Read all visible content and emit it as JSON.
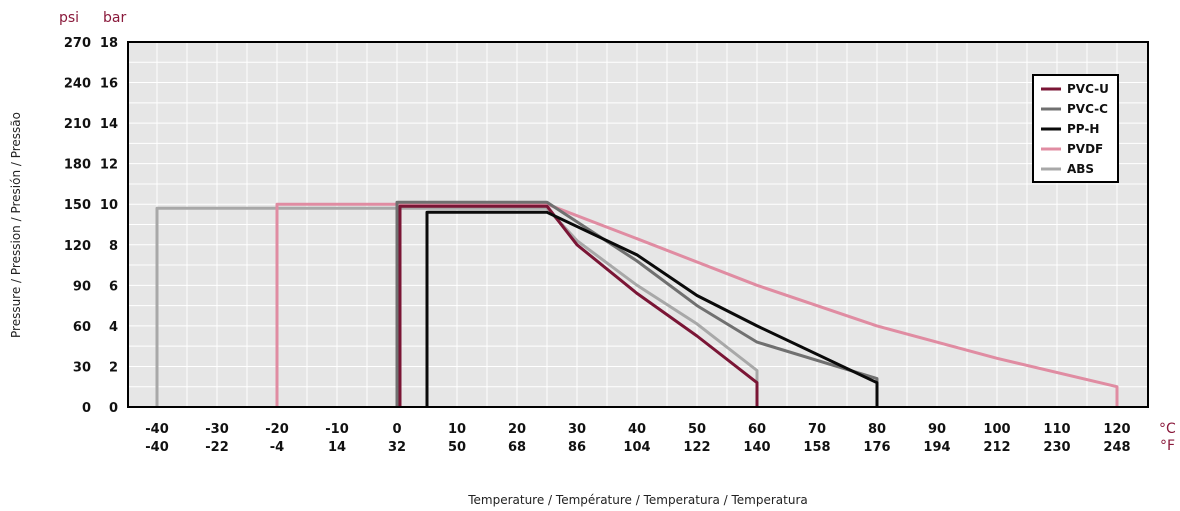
{
  "chart_data": {
    "type": "line",
    "xlabel": "Temperature / Température / Temperatura / Temperatura",
    "ylabel": "Pressure / Pression / Presión / Pressão",
    "x_unit_primary": "°C",
    "x_unit_secondary": "°F",
    "y_unit_primary": "bar",
    "y_unit_secondary": "psi",
    "xlim": [
      -40,
      120
    ],
    "ylim": [
      0,
      18
    ],
    "x_ticks_c": [
      "-40",
      "-30",
      "-20",
      "-10",
      "0",
      "10",
      "20",
      "30",
      "40",
      "50",
      "60",
      "70",
      "80",
      "90",
      "100",
      "110",
      "120"
    ],
    "x_ticks_f": [
      "-40",
      "-22",
      "-4",
      "14",
      "32",
      "50",
      "68",
      "86",
      "104",
      "122",
      "140",
      "158",
      "176",
      "194",
      "212",
      "230",
      "248"
    ],
    "y_ticks_bar": [
      "0",
      "2",
      "4",
      "6",
      "8",
      "10",
      "12",
      "14",
      "16",
      "18"
    ],
    "y_ticks_psi": [
      "0",
      "30",
      "60",
      "90",
      "120",
      "150",
      "180",
      "210",
      "240",
      "270"
    ],
    "grid": true,
    "legend_position": "top-right",
    "colors": {
      "PVC-U": "#7a1535",
      "PVC-C": "#707070",
      "PP-H": "#0a0a0a",
      "PVDF": "#e08ca2",
      "ABS": "#a8a8a8"
    },
    "series": [
      {
        "name": "ABS",
        "x": [
          -40,
          -40,
          25,
          30,
          40,
          50,
          60,
          60
        ],
        "y": [
          0,
          9.8,
          9.8,
          8.2,
          6.0,
          4.1,
          1.8,
          0
        ]
      },
      {
        "name": "PVDF",
        "x": [
          -20,
          -20,
          25,
          40,
          60,
          80,
          100,
          120,
          120
        ],
        "y": [
          0,
          10.0,
          10.0,
          8.3,
          6.0,
          4.0,
          2.4,
          1.0,
          0
        ]
      },
      {
        "name": "PVC-C",
        "x": [
          0,
          0,
          25,
          40,
          50,
          60,
          80,
          80
        ],
        "y": [
          0,
          10.1,
          10.1,
          7.2,
          5.0,
          3.2,
          1.4,
          0
        ]
      },
      {
        "name": "PVC-U",
        "x": [
          0.5,
          0.5,
          25,
          30,
          40,
          50,
          60,
          60
        ],
        "y": [
          0,
          9.9,
          9.9,
          8.0,
          5.6,
          3.5,
          1.2,
          0
        ]
      },
      {
        "name": "PP-H",
        "x": [
          5,
          5,
          25,
          40,
          50,
          60,
          80,
          80
        ],
        "y": [
          0,
          9.6,
          9.6,
          7.5,
          5.5,
          4.0,
          1.2,
          0
        ]
      }
    ],
    "legend_order": [
      "PVC-U",
      "PVC-C",
      "PP-H",
      "PVDF",
      "ABS"
    ]
  }
}
